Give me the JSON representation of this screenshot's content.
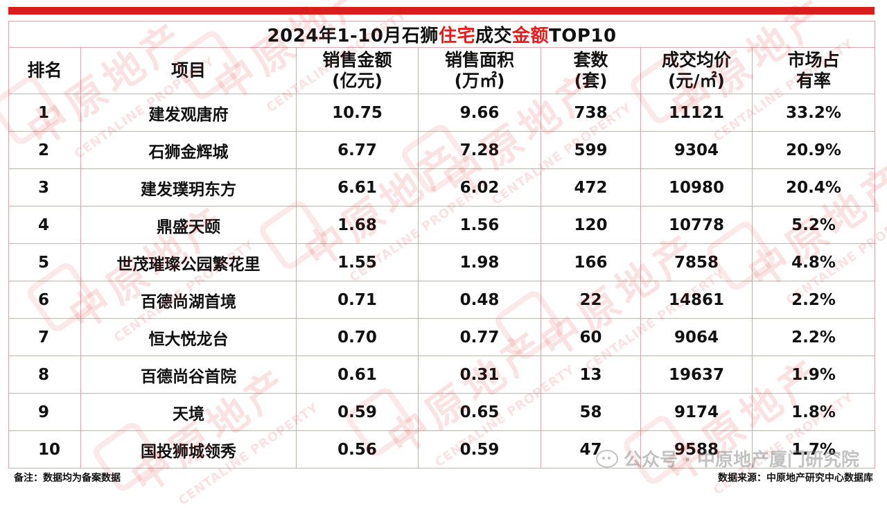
{
  "table": {
    "title_part1": "2024年1-10月石狮",
    "title_part2": "住宅",
    "title_part3": "成交",
    "title_part4": "金额",
    "title_part5": "TOP10",
    "headers": {
      "rank": "排名",
      "project": "项目",
      "sales_line1": "销售金额",
      "sales_line2": "(亿元)",
      "area_line1": "销售面积",
      "area_line2": "(万㎡)",
      "units_line1": "套数",
      "units_line2": "(套)",
      "price_line1": "成交均价",
      "price_line2": "(元/㎡)",
      "share_line1": "市场占",
      "share_line2": "有率"
    },
    "rows": [
      {
        "rank": "1",
        "project": "建发观唐府",
        "sales": "10.75",
        "area": "9.66",
        "units": "738",
        "price": "11121",
        "share": "33.2%"
      },
      {
        "rank": "2",
        "project": "石狮金辉城",
        "sales": "6.77",
        "area": "7.28",
        "units": "599",
        "price": "9304",
        "share": "20.9%"
      },
      {
        "rank": "3",
        "project": "建发璞玥东方",
        "sales": "6.61",
        "area": "6.02",
        "units": "472",
        "price": "10980",
        "share": "20.4%"
      },
      {
        "rank": "4",
        "project": "鼎盛天颐",
        "sales": "1.68",
        "area": "1.56",
        "units": "120",
        "price": "10778",
        "share": "5.2%"
      },
      {
        "rank": "5",
        "project": "世茂璀璨公园繁花里",
        "sales": "1.55",
        "area": "1.98",
        "units": "166",
        "price": "7858",
        "share": "4.8%"
      },
      {
        "rank": "6",
        "project": "百德尚湖首境",
        "sales": "0.71",
        "area": "0.48",
        "units": "22",
        "price": "14861",
        "share": "2.2%"
      },
      {
        "rank": "7",
        "project": "恒大悦龙台",
        "sales": "0.70",
        "area": "0.77",
        "units": "60",
        "price": "9064",
        "share": "2.2%"
      },
      {
        "rank": "8",
        "project": "百德尚谷首院",
        "sales": "0.61",
        "area": "0.31",
        "units": "13",
        "price": "19637",
        "share": "1.9%"
      },
      {
        "rank": "9",
        "project": "天境",
        "sales": "0.59",
        "area": "0.65",
        "units": "58",
        "price": "9174",
        "share": "1.8%"
      },
      {
        "rank": "10",
        "project": "国投狮城领秀",
        "sales": "0.56",
        "area": "0.59",
        "units": "47",
        "price": "9588",
        "share": "1.7%"
      }
    ]
  },
  "footer": {
    "note": "备注：数据均为备案数据",
    "source": "数据来源：中原地产研究中心数据库"
  },
  "wechat": {
    "label": "公众号 · 中原地产厦门研究院"
  },
  "watermark": {
    "cn": "中原地产",
    "en": "CENTALINE PROPERTY"
  },
  "colors": {
    "accent_red": "#d81e1e",
    "title_red": "#e61c1c",
    "border": "#d9a7a7"
  }
}
